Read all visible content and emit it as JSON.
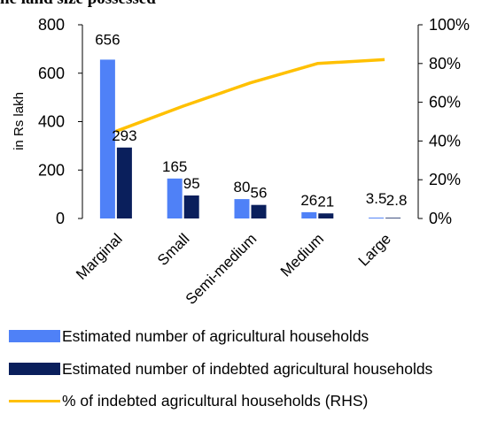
{
  "title_fragment": "he land size possessed",
  "colors": {
    "estimated": "#4f81f7",
    "indebted": "#0a1f5c",
    "pct_line": "#ffc000",
    "axis": "#000000"
  },
  "chart_data": {
    "type": "bar",
    "categories": [
      "Marginal",
      "Small",
      "Semi-medium",
      "Medium",
      "Large"
    ],
    "series": [
      {
        "name": "Estimated number of agricultural households",
        "type": "bar",
        "axis": "left",
        "values": [
          656,
          165,
          80,
          26,
          3.5
        ],
        "labels": [
          "656",
          "165",
          "80",
          "26",
          "3.5"
        ]
      },
      {
        "name": "Estimated number of indebted agricultural households",
        "type": "bar",
        "axis": "left",
        "values": [
          293,
          95,
          56,
          21,
          2.8
        ],
        "labels": [
          "293",
          "95",
          "56",
          "21",
          "2.8"
        ]
      },
      {
        "name": "% of indebted agricultural households (RHS)",
        "type": "line",
        "axis": "right",
        "values": [
          45,
          58,
          70,
          80,
          82
        ]
      }
    ],
    "ylabel": "in Rs lakh",
    "ylim": [
      0,
      800
    ],
    "yticks": [
      "0",
      "200",
      "400",
      "600",
      "800"
    ],
    "y2lim": [
      0,
      100
    ],
    "y2ticks": [
      "0%",
      "20%",
      "40%",
      "60%",
      "80%",
      "100%"
    ],
    "grid": false,
    "legend_position": "bottom"
  }
}
